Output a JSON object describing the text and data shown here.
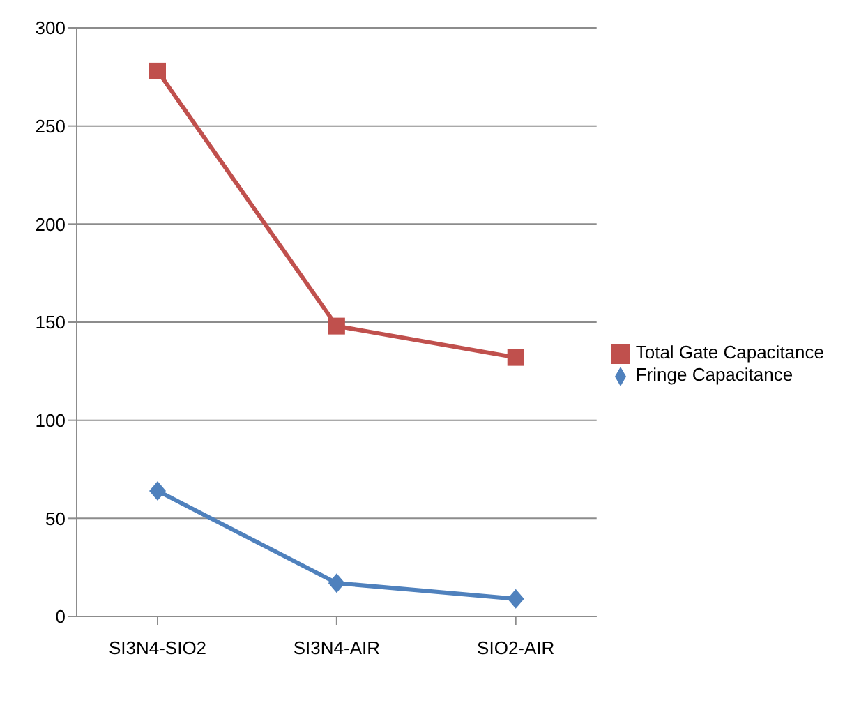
{
  "chart_data": {
    "type": "line",
    "categories": [
      "SI3N4-SIO2",
      "SI3N4-AIR",
      "SIO2-AIR"
    ],
    "series": [
      {
        "name": "Total Gate Capacitance",
        "color": "#c0504d",
        "marker": "square",
        "values": [
          278,
          148,
          132
        ]
      },
      {
        "name": "Fringe Capacitance",
        "color": "#4f81bd",
        "marker": "diamond",
        "values": [
          64,
          17,
          9
        ]
      }
    ],
    "ylim": [
      0,
      300
    ],
    "yticks": [
      0,
      50,
      100,
      150,
      200,
      250,
      300
    ],
    "grid": "y",
    "legend": "right"
  }
}
